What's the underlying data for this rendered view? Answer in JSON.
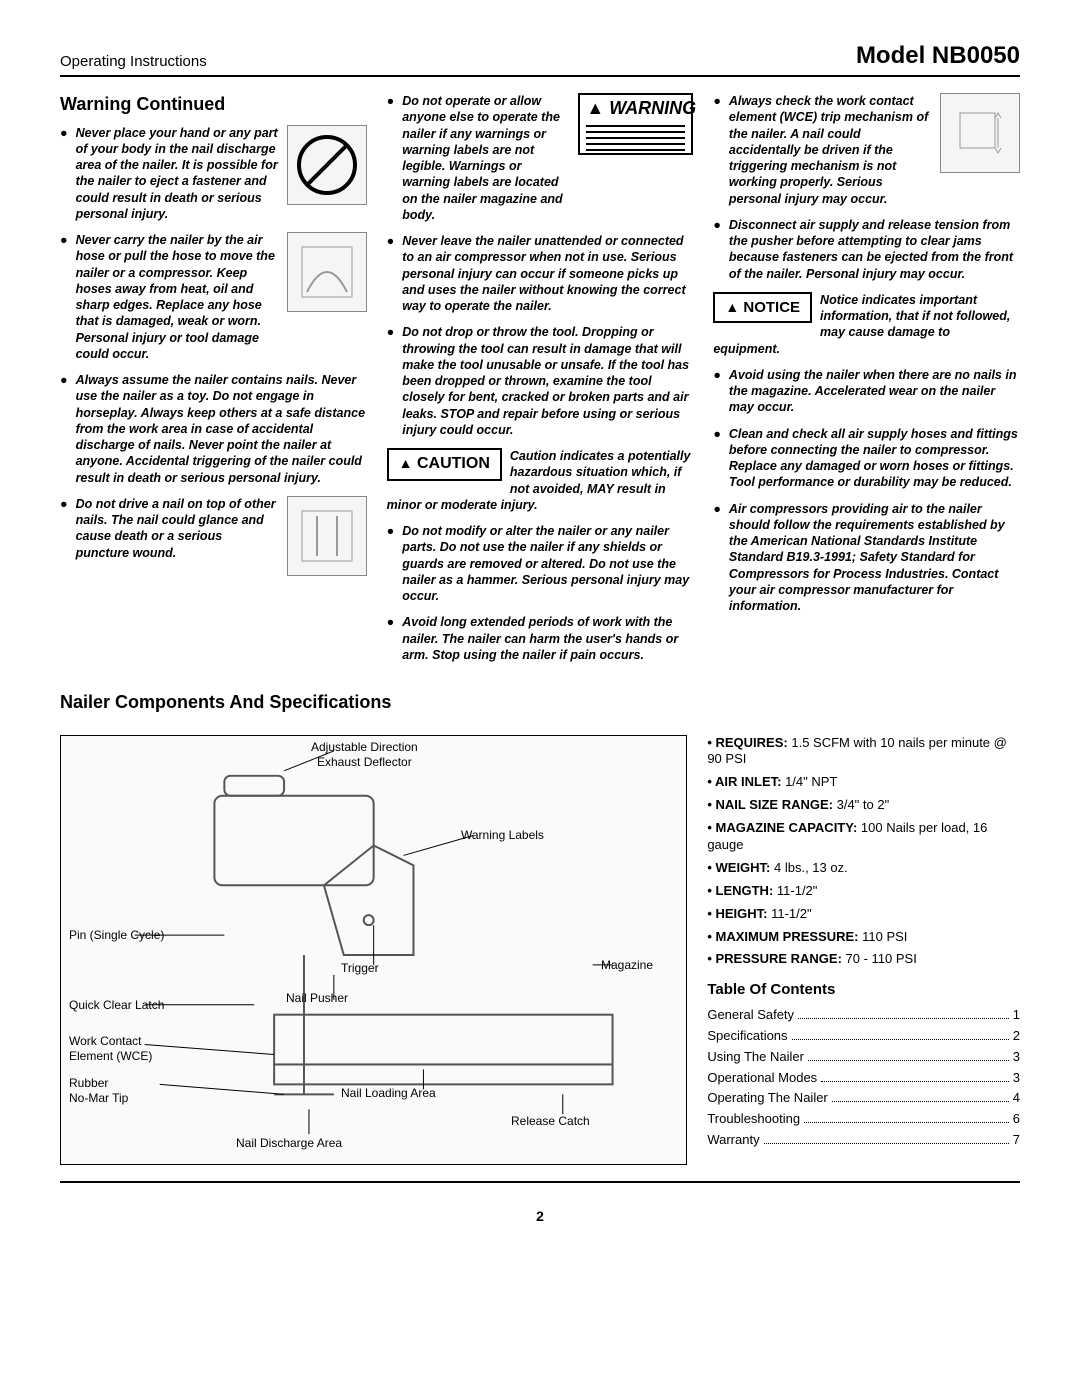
{
  "header": {
    "left": "Operating Instructions",
    "right": "Model NB0050"
  },
  "page_number": "2",
  "section_titles": {
    "warning_continued": "Warning Continued",
    "components": "Nailer Components And Specifications",
    "toc": "Table Of Contents"
  },
  "labels": {
    "warning": "WARNING",
    "caution": "CAUTION",
    "notice": "NOTICE",
    "triangle": "▲"
  },
  "col1": {
    "b1": "Never place your hand or any part of your body in the nail discharge area of the nailer. It is possible for the nailer to eject a fastener and could result in death or serious personal injury.",
    "b2": "Never carry the nailer by the air hose or pull the hose to move the nailer or a compressor. Keep hoses away from heat, oil and sharp edges. Replace any hose that is damaged, weak or worn. Personal injury or tool damage could occur.",
    "b3": "Always assume the nailer contains nails. Never use the nailer as a toy. Do not engage in horseplay. Always keep others at a safe distance from the work area in case of accidental discharge of nails. Never point the nailer at anyone. Accidental triggering of the nailer could result in death or serious personal injury.",
    "b4": "Do not drive a nail on top of other nails. The nail could glance and cause death or a serious puncture wound."
  },
  "col2": {
    "b1": "Do not operate or allow anyone else to operate the nailer if any warnings or warning labels are not legible. Warnings or warning labels are located on the nailer magazine and body.",
    "b2": "Never leave the nailer unattended or connected to an air compressor when not in use. Serious personal injury can occur if someone picks up and uses the nailer without knowing the correct way to operate the nailer.",
    "b3": "Do not drop or throw the tool. Dropping or throwing the tool can result in damage that will make the tool unusable or unsafe. If the tool has been dropped or thrown, examine the tool closely for bent, cracked or broken parts and air leaks. STOP and repair before using or serious injury could occur.",
    "caution_intro": "Caution indicates a potentially hazardous situation which, if not avoided, MAY result in minor or moderate injury.",
    "b4": "Do not modify or alter the nailer or any nailer parts. Do not use the nailer if any shields or guards are removed or altered. Do not use the nailer as a hammer. Serious personal injury may occur.",
    "b5": "Avoid long extended periods of work with the nailer. The nailer can harm the user's hands or arm. Stop using the nailer if pain occurs."
  },
  "col3": {
    "b1": "Always check the work contact element (WCE) trip mechanism of the nailer. A nail could accidentally be driven if the triggering mechanism is not working properly. Serious personal injury may occur.",
    "b2": "Disconnect air supply and release tension from the pusher before attempting to clear jams because fasteners can be ejected from the front of the nailer. Personal injury may occur.",
    "notice_intro": "Notice indicates important information, that if not followed, may cause damage to equipment.",
    "b3": "Avoid using the nailer when there are no nails in the magazine. Accelerated wear on the nailer may occur.",
    "b4": "Clean and check all air supply hoses and fittings before connecting the nailer to compressor. Replace any damaged or worn hoses or fittings. Tool performance or durability may be reduced.",
    "b5": "Air compressors providing air to the nailer should follow the requirements established by the American National Standards Institute Standard B19.3-1991; Safety Standard for Compressors for Process Industries. Contact your air compressor manufacturer for information."
  },
  "specs": [
    {
      "k": "REQUIRES:",
      "v": " 1.5 SCFM with 10 nails per minute @ 90 PSI"
    },
    {
      "k": "AIR INLET:",
      "v": " 1/4\" NPT"
    },
    {
      "k": "NAIL SIZE RANGE:",
      "v": " 3/4\" to 2\""
    },
    {
      "k": "MAGAZINE CAPACITY:",
      "v": " 100 Nails per load, 16 gauge"
    },
    {
      "k": "WEIGHT:",
      "v": " 4 lbs., 13 oz."
    },
    {
      "k": "LENGTH:",
      "v": " 11-1/2\""
    },
    {
      "k": "HEIGHT:",
      "v": " 11-1/2\""
    },
    {
      "k": "MAXIMUM PRESSURE:",
      "v": " 110 PSI"
    },
    {
      "k": "PRESSURE RANGE:",
      "v": " 70 - 110 PSI"
    }
  ],
  "toc": [
    {
      "label": "General Safety",
      "page": "1"
    },
    {
      "label": "Specifications",
      "page": "2"
    },
    {
      "label": "Using The Nailer",
      "page": "3"
    },
    {
      "label": "Operational Modes",
      "page": "3"
    },
    {
      "label": "Operating The Nailer",
      "page": "4"
    },
    {
      "label": "Troubleshooting",
      "page": "6"
    },
    {
      "label": "Warranty",
      "page": "7"
    }
  ],
  "diagram": {
    "labels": {
      "exhaust": "Adjustable Direction\nExhaust Deflector",
      "warning_labels": "Warning Labels",
      "pin": "Pin (Single Cycle)",
      "trigger": "Trigger",
      "magazine": "Magazine",
      "nail_pusher": "Nail Pusher",
      "quick_clear": "Quick Clear Latch",
      "wce": "Work Contact\nElement (WCE)",
      "rubber": "Rubber\nNo-Mar Tip",
      "nail_loading": "Nail Loading Area",
      "release_catch": "Release Catch",
      "nail_discharge": "Nail Discharge Area"
    }
  },
  "colors": {
    "text": "#000000",
    "background": "#ffffff",
    "rule": "#000000",
    "diagram_bg": "#fafafa"
  }
}
